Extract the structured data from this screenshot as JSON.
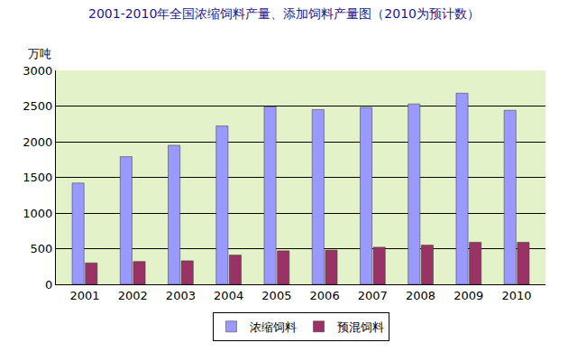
{
  "chart_data": {
    "type": "bar",
    "title": "2001-2010年全国浓缩饲料产量、添加饲料产量图（2010为预计数）",
    "ylabel": "万吨",
    "categories": [
      "2001",
      "2002",
      "2003",
      "2004",
      "2005",
      "2006",
      "2007",
      "2008",
      "2009",
      "2010"
    ],
    "series": [
      {
        "name": "浓缩饲料",
        "color": "#9999ff",
        "values": [
          1420,
          1790,
          1950,
          2220,
          2490,
          2450,
          2480,
          2530,
          2680,
          2440
        ]
      },
      {
        "name": "预混饲料",
        "color": "#993366",
        "values": [
          300,
          320,
          330,
          410,
          470,
          480,
          520,
          550,
          590,
          590
        ]
      }
    ],
    "ylim": [
      0,
      3000
    ],
    "yticks": [
      0,
      500,
      1000,
      1500,
      2000,
      2500,
      3000
    ],
    "grid": true,
    "legend": "bottom"
  }
}
